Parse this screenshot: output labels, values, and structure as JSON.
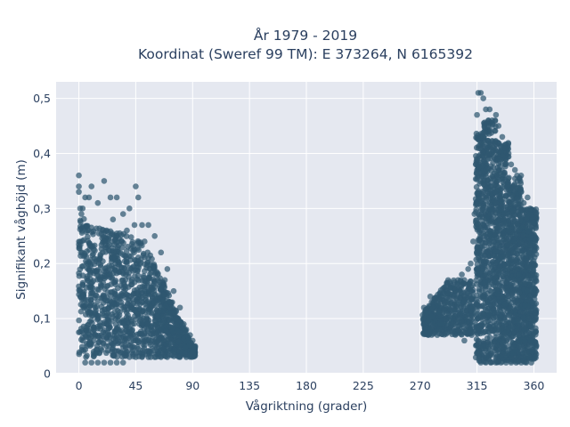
{
  "chart_data": {
    "type": "scatter",
    "title": "År 1979 - 2019",
    "subtitle": "Koordinat (Sweref 99 TM): E 373264, N 6165392",
    "xlabel": "Vågriktning (grader)",
    "ylabel": "Signifikant våghöjd (m)",
    "xlim": [
      -18,
      378
    ],
    "ylim": [
      0,
      0.53
    ],
    "xticks": [
      0,
      45,
      90,
      135,
      180,
      225,
      270,
      315,
      360
    ],
    "xtick_labels": [
      "0",
      "45",
      "90",
      "135",
      "180",
      "225",
      "270",
      "315",
      "360"
    ],
    "yticks": [
      0,
      0.1,
      0.2,
      0.3,
      0.4,
      0.5
    ],
    "ytick_labels": [
      "0",
      "0,1",
      "0,2",
      "0,3",
      "0,4",
      "0,5"
    ],
    "grid": true,
    "colors": {
      "marker": "#2f5770",
      "plot_bg": "#e5e8f0",
      "grid": "#ffffff"
    },
    "series": [
      {
        "x": [
          0,
          0,
          0,
          1,
          2,
          3,
          5,
          8,
          10,
          15,
          20,
          25,
          30,
          35,
          40,
          45,
          47,
          50,
          55,
          60,
          65,
          70,
          75,
          80,
          85,
          90,
          92,
          5,
          10,
          15,
          20,
          25,
          30,
          35,
          40,
          45,
          50,
          55,
          60,
          65,
          70,
          75,
          80,
          85,
          90,
          20,
          22,
          27,
          30,
          38,
          44,
          52,
          8,
          15,
          18,
          24,
          12,
          33,
          46,
          55,
          68,
          72,
          76,
          83,
          88
        ],
        "y": [
          0.36,
          0.34,
          0.33,
          0.3,
          0.29,
          0.3,
          0.32,
          0.32,
          0.34,
          0.31,
          0.35,
          0.32,
          0.32,
          0.29,
          0.3,
          0.34,
          0.32,
          0.27,
          0.27,
          0.25,
          0.22,
          0.19,
          0.15,
          0.12,
          0.08,
          0.06,
          0.05,
          0.02,
          0.02,
          0.02,
          0.02,
          0.02,
          0.02,
          0.02,
          0.03,
          0.03,
          0.03,
          0.03,
          0.03,
          0.03,
          0.03,
          0.04,
          0.03,
          0.03,
          0.04,
          0.24,
          0.26,
          0.28,
          0.25,
          0.26,
          0.27,
          0.24,
          0.12,
          0.1,
          0.16,
          0.18,
          0.08,
          0.14,
          0.2,
          0.21,
          0.17,
          0.13,
          0.11,
          0.09,
          0.07
        ]
      },
      {
        "x": [
          273,
          275,
          278,
          280,
          285,
          290,
          295,
          300,
          303,
          305,
          308,
          310,
          312,
          313,
          314,
          315,
          316,
          318,
          320,
          322,
          324,
          325,
          327,
          330,
          332,
          335,
          337,
          340,
          342,
          345,
          347,
          350,
          352,
          355,
          357,
          358,
          360,
          362,
          318,
          322,
          326,
          330,
          334,
          338,
          342,
          346,
          350,
          354,
          358,
          305,
          300,
          296,
          290,
          285,
          280,
          325,
          331,
          336,
          340,
          344,
          348,
          352,
          356,
          329,
          333,
          320,
          310
        ],
        "y": [
          0.12,
          0.11,
          0.14,
          0.09,
          0.08,
          0.13,
          0.16,
          0.17,
          0.18,
          0.17,
          0.19,
          0.2,
          0.24,
          0.29,
          0.38,
          0.47,
          0.51,
          0.51,
          0.5,
          0.48,
          0.46,
          0.48,
          0.46,
          0.47,
          0.45,
          0.43,
          0.41,
          0.4,
          0.38,
          0.37,
          0.35,
          0.33,
          0.31,
          0.32,
          0.3,
          0.25,
          0.2,
          0.15,
          0.02,
          0.02,
          0.02,
          0.02,
          0.02,
          0.02,
          0.02,
          0.02,
          0.02,
          0.02,
          0.02,
          0.06,
          0.08,
          0.09,
          0.1,
          0.11,
          0.12,
          0.3,
          0.35,
          0.28,
          0.26,
          0.22,
          0.18,
          0.14,
          0.1,
          0.42,
          0.39,
          0.05,
          0.15
        ]
      }
    ]
  }
}
